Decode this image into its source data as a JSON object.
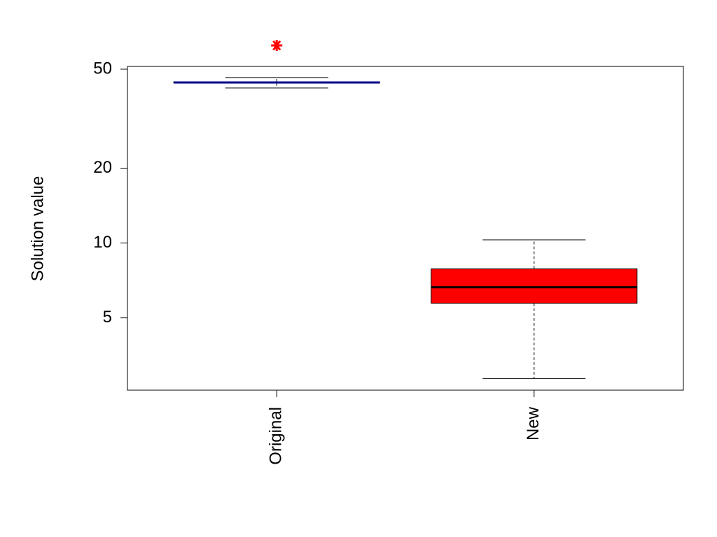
{
  "chart_data": {
    "type": "box",
    "y_label": "Solution value",
    "categories": [
      "Original",
      "New"
    ],
    "boxes": [
      {
        "min": 42.0,
        "q1": 44.0,
        "median": 44.2,
        "q3": 44.5,
        "max": 46.3
      },
      {
        "min": 2.85,
        "q1": 5.72,
        "median": 6.64,
        "q3": 7.87,
        "max": 10.3
      }
    ],
    "outliers": [
      [
        62.3
      ],
      []
    ],
    "colors": [
      "#00008b",
      "#ff0000"
    ],
    "outlier_color": "#ff0000",
    "log_scale": true,
    "ylim": [
      2.56,
      51.3
    ],
    "yticks": [
      5,
      10,
      20,
      50
    ]
  }
}
